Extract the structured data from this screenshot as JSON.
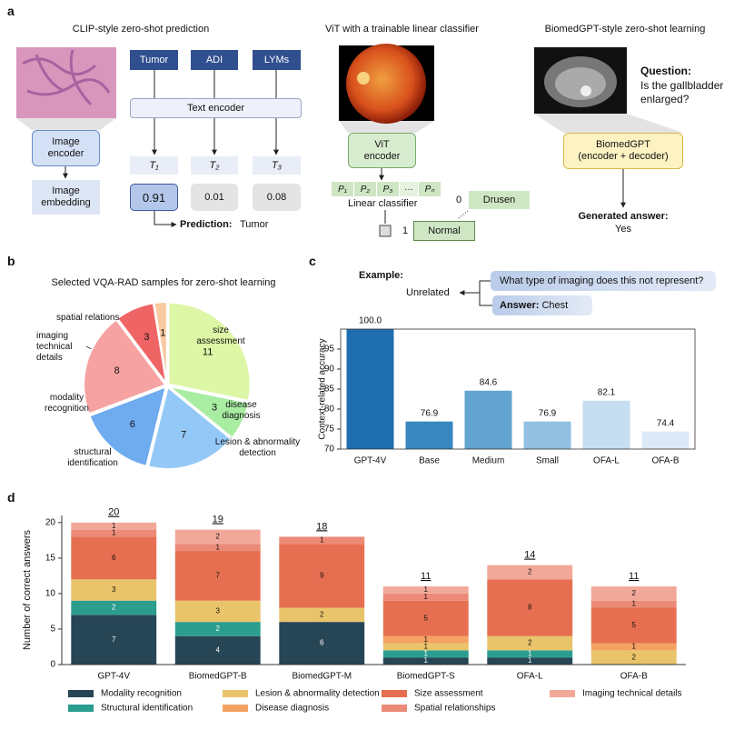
{
  "panel_labels": [
    "a",
    "b",
    "c",
    "d"
  ],
  "panel_a": {
    "clip": {
      "title": "CLIP-style zero-shot prediction",
      "labels": [
        "Tumor",
        "ADI",
        "LYMs"
      ],
      "text_encoder": "Text encoder",
      "image_encoder": "Image encoder",
      "image_embedding": "Image embedding",
      "tokens": [
        "T₁",
        "T₂",
        "T₃"
      ],
      "scores": [
        0.91,
        0.01,
        0.08
      ],
      "prediction_label": "Prediction:",
      "prediction": "Tumor"
    },
    "vit": {
      "title": "ViT with a trainable linear classifier",
      "encoder": "ViT encoder",
      "patches": [
        "P₁",
        "P₂",
        "P₃",
        "···",
        "Pₙ"
      ],
      "classifier": "Linear classifier",
      "classes": [
        {
          "index": "0",
          "name": "Drusen"
        },
        {
          "index": "1",
          "name": "Normal"
        }
      ]
    },
    "biomedgpt": {
      "title": "BiomedGPT-style zero-shot learning",
      "question_label": "Question:",
      "question": "Is the gallbladder enlarged?",
      "model": "BiomedGPT",
      "model_note": "(encoder + decoder)",
      "answer_label": "Generated answer:",
      "answer": "Yes"
    }
  },
  "example": {
    "label": "Example:",
    "result": "Unrelated",
    "question": "What type of imaging does this not represent?",
    "answer_label": "Answer:",
    "answer": "Chest"
  },
  "chart_data": [
    {
      "type": "pie",
      "title": "Selected VQA-RAD samples for zero-shot learning",
      "categories": [
        "size assessment",
        "disease diagnosis",
        "Lesion & abnormality detection",
        "structural identification",
        "modality recognition",
        "imaging technical details",
        "spatial relations"
      ],
      "values": [
        11,
        3,
        7,
        6,
        8,
        3,
        1
      ],
      "colors": [
        "#ddf7a6",
        "#a9eda3",
        "#94c9f7",
        "#6eabef",
        "#f6a2a2",
        "#ef6464",
        "#f9caa2"
      ]
    },
    {
      "type": "bar",
      "ylabel": "Context-related accuracy",
      "categories": [
        "GPT-4V",
        "Base",
        "Medium",
        "Small",
        "OFA-L",
        "OFA-B"
      ],
      "values": [
        100.0,
        76.9,
        84.6,
        76.9,
        82.1,
        74.4
      ],
      "value_labels": [
        "100.0",
        "76.9",
        "84.6",
        "76.9",
        "82.1",
        "74.4"
      ],
      "colors": [
        "#1f6fb0",
        "#3a87c0",
        "#62a3d0",
        "#92c0e1",
        "#c6def0",
        "#dce9f6"
      ],
      "ylim": [
        70,
        100
      ],
      "yticks": [
        70,
        75,
        80,
        85,
        90,
        95
      ]
    },
    {
      "type": "stacked_bar",
      "ylabel": "Number of correct answers",
      "categories": [
        "GPT-4V",
        "BiomedGPT-B",
        "BiomedGPT-M",
        "BiomedGPT-S",
        "OFA-L",
        "OFA-B"
      ],
      "totals": [
        20,
        19,
        18,
        11,
        14,
        11
      ],
      "series": [
        {
          "name": "Modality recognition",
          "color": "#274655",
          "values": [
            7,
            4,
            6,
            1,
            1,
            0
          ]
        },
        {
          "name": "Structural identification",
          "color": "#2a9d8f",
          "values": [
            2,
            2,
            0,
            1,
            1,
            0
          ]
        },
        {
          "name": "Lesion & abnormality detection",
          "color": "#e9c46a",
          "values": [
            3,
            3,
            2,
            1,
            2,
            2
          ]
        },
        {
          "name": "Disease diagnosis",
          "color": "#f4a261",
          "values": [
            0,
            0,
            0,
            1,
            0,
            1
          ]
        },
        {
          "name": "Size assessment",
          "color": "#e76f51",
          "values": [
            6,
            7,
            9,
            5,
            8,
            5
          ]
        },
        {
          "name": "Spatial relationships",
          "color": "#ec8a78",
          "values": [
            1,
            1,
            1,
            1,
            0,
            1
          ]
        },
        {
          "name": "Imaging technical details",
          "color": "#f2a899",
          "values": [
            1,
            2,
            0,
            1,
            2,
            2
          ]
        }
      ],
      "ylim": [
        0,
        21
      ],
      "yticks": [
        0,
        5,
        10,
        15,
        20
      ],
      "legend": "bottom"
    }
  ]
}
